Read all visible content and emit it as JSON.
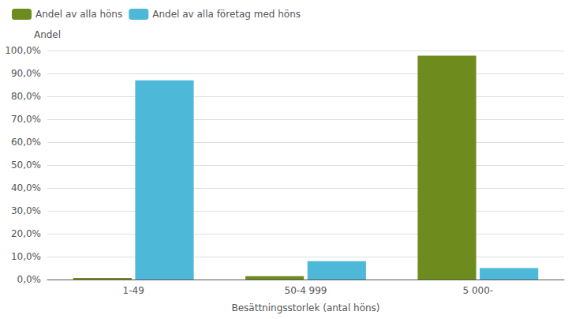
{
  "chart_data": {
    "type": "bar",
    "categories": [
      "1-49",
      "50-4 999",
      "5 000-"
    ],
    "series": [
      {
        "name": "Andel av alla höns",
        "color": "#6e8c1e",
        "values": [
          0.7,
          1.5,
          97.8
        ]
      },
      {
        "name": "Andel av alla företag med höns",
        "color": "#4db8d8",
        "values": [
          87.0,
          8.0,
          5.0
        ]
      }
    ],
    "ylabel": "Andel",
    "xlabel": "Besättningsstorlek (antal höns)",
    "ylim": [
      0,
      100
    ],
    "yticks": [
      {
        "value": 0,
        "label": "0,0%"
      },
      {
        "value": 10,
        "label": "10,0%"
      },
      {
        "value": 20,
        "label": "20,0%"
      },
      {
        "value": 30,
        "label": "30,0%"
      },
      {
        "value": 40,
        "label": "40,0%"
      },
      {
        "value": 50,
        "label": "50,0%"
      },
      {
        "value": 60,
        "label": "60,0%"
      },
      {
        "value": 70,
        "label": "70,0%"
      },
      {
        "value": 80,
        "label": "80,0%"
      },
      {
        "value": 90,
        "label": "90,0%"
      },
      {
        "value": 100,
        "label": "100,0%"
      }
    ],
    "grid": true,
    "legend": "upper left"
  }
}
